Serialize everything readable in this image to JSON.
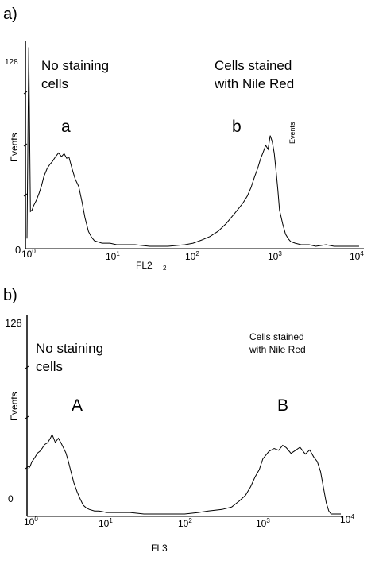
{
  "chart_data": [
    {
      "type": "line",
      "panel_label": "a)",
      "xlabel": "FL2",
      "ylabel": "Events",
      "right_axis_label": "Events",
      "x_scale": "log",
      "xlim": [
        1,
        10000
      ],
      "ylim": [
        0,
        128
      ],
      "x_tick_labels": [
        "10",
        "10",
        "10",
        "10",
        "10"
      ],
      "x_tick_exponents": [
        "0",
        "1",
        "2",
        "3",
        "4"
      ],
      "y_tick_labels": [
        "128",
        "0"
      ],
      "stray_marks": [
        "2"
      ],
      "annotations": [
        {
          "text": [
            "No staining",
            "cells"
          ]
        },
        {
          "text": [
            "Cells stained",
            "with Nile Red"
          ]
        },
        {
          "text": [
            "a"
          ]
        },
        {
          "text": [
            "b"
          ]
        }
      ],
      "grid": false,
      "series": [
        {
          "x": [
            1.0,
            1.05,
            1.1,
            1.15,
            1.2,
            1.3,
            1.4,
            1.5,
            1.6,
            1.75,
            1.9,
            2.0,
            2.2,
            2.4,
            2.6,
            2.8,
            3.0,
            3.2,
            3.5,
            3.8,
            4.2,
            4.6,
            5.0,
            5.5,
            6.0,
            6.5,
            7.0,
            8.0,
            9.0,
            10,
            12,
            15,
            20,
            30,
            50,
            80,
            100,
            130,
            160,
            200,
            250,
            300,
            350,
            400,
            450,
            500,
            550,
            600,
            650,
            700,
            750,
            800,
            850,
            900,
            950,
            1000,
            1050,
            1100,
            1200,
            1300,
            1400,
            1500,
            1700,
            2000,
            2500,
            3000,
            4000,
            5000,
            7000,
            10000
          ],
          "y": [
            5,
            128,
            22,
            24,
            26,
            30,
            34,
            40,
            45,
            50,
            53,
            55,
            58,
            60,
            58,
            60,
            56,
            58,
            50,
            44,
            38,
            28,
            18,
            10,
            6,
            4,
            3,
            2,
            2,
            2,
            1,
            1,
            1,
            0,
            0,
            1,
            2,
            4,
            6,
            10,
            14,
            20,
            24,
            28,
            32,
            38,
            44,
            50,
            56,
            60,
            65,
            62,
            72,
            68,
            60,
            48,
            36,
            24,
            14,
            8,
            5,
            3,
            2,
            1,
            1,
            0,
            1,
            0,
            0,
            0
          ]
        }
      ]
    },
    {
      "type": "line",
      "panel_label": "b)",
      "xlabel": "FL3",
      "ylabel": "Events",
      "x_scale": "log",
      "xlim": [
        1,
        10000
      ],
      "ylim": [
        0,
        128
      ],
      "x_tick_labels": [
        "10",
        "10",
        "10",
        "10",
        "10"
      ],
      "x_tick_exponents": [
        "0",
        "1",
        "2",
        "3",
        "4"
      ],
      "y_tick_labels": [
        "128",
        "0"
      ],
      "annotations": [
        {
          "text": [
            "No staining",
            "cells"
          ]
        },
        {
          "text": [
            "Cells stained",
            "with Nile Red"
          ]
        },
        {
          "text": [
            "A"
          ]
        },
        {
          "text": [
            "B"
          ]
        }
      ],
      "grid": false,
      "series": [
        {
          "x": [
            1.0,
            1.05,
            1.1,
            1.15,
            1.2,
            1.3,
            1.4,
            1.5,
            1.6,
            1.75,
            1.9,
            2.0,
            2.2,
            2.4,
            2.6,
            2.8,
            3.0,
            3.2,
            3.5,
            3.8,
            4.2,
            4.6,
            5.0,
            5.5,
            6.0,
            7.0,
            8.0,
            10,
            15,
            20,
            30,
            50,
            80,
            100,
            150,
            200,
            300,
            400,
            500,
            600,
            700,
            800,
            900,
            1000,
            1200,
            1400,
            1600,
            1800,
            2000,
            2300,
            2600,
            3000,
            3500,
            4000,
            4500,
            5000,
            5500,
            6000,
            6500,
            7000,
            7500,
            8000,
            9000,
            10000
          ],
          "y": [
            30,
            32,
            34,
            36,
            38,
            40,
            42,
            44,
            46,
            48,
            50,
            52,
            48,
            50,
            47,
            44,
            40,
            35,
            28,
            20,
            14,
            10,
            6,
            4,
            3,
            2,
            2,
            1,
            1,
            1,
            0,
            0,
            0,
            0,
            1,
            2,
            3,
            5,
            8,
            12,
            18,
            24,
            30,
            36,
            42,
            44,
            42,
            46,
            44,
            40,
            42,
            44,
            40,
            42,
            38,
            35,
            28,
            18,
            8,
            2,
            0,
            0,
            0,
            0
          ]
        }
      ]
    }
  ]
}
